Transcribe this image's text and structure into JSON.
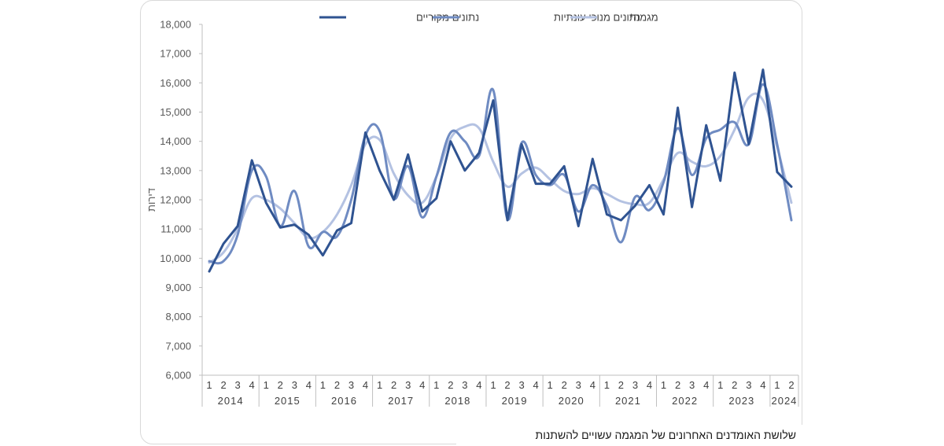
{
  "chart_data": {
    "type": "line",
    "ylabel": "דירות",
    "ylim": [
      6000,
      18000
    ],
    "yticks": [
      6000,
      7000,
      8000,
      9000,
      10000,
      11000,
      12000,
      13000,
      14000,
      15000,
      16000,
      17000,
      18000
    ],
    "ytick_labels": [
      "6,000",
      "7,000",
      "8,000",
      "9,000",
      "10,000",
      "11,000",
      "12,000",
      "13,000",
      "14,000",
      "15,000",
      "16,000",
      "17,000",
      "18,000"
    ],
    "x_quarters": [
      "1",
      "2",
      "3",
      "4",
      "1",
      "2",
      "3",
      "4",
      "1",
      "2",
      "3",
      "4",
      "1",
      "2",
      "3",
      "4",
      "1",
      "2",
      "3",
      "4",
      "1",
      "2",
      "3",
      "4",
      "1",
      "2",
      "3",
      "4",
      "1",
      "2",
      "3",
      "4",
      "1",
      "2",
      "3",
      "4",
      "1",
      "2",
      "3",
      "4",
      "1",
      "2"
    ],
    "years": [
      "2014",
      "2015",
      "2016",
      "2017",
      "2018",
      "2019",
      "2020",
      "2021",
      "2022",
      "2023",
      "2024"
    ],
    "legend_position": "top",
    "grid": false,
    "series": [
      {
        "name": "נתונים מקוריים",
        "color": "#2f5391",
        "values": [
          9550,
          10500,
          11100,
          13350,
          11900,
          11050,
          11150,
          10800,
          10100,
          10950,
          11200,
          14300,
          13000,
          12000,
          13550,
          11600,
          12050,
          14000,
          13000,
          13600,
          15400,
          11300,
          13900,
          12550,
          12550,
          13150,
          11100,
          13400,
          11500,
          11300,
          11800,
          12500,
          11500,
          15150,
          11750,
          14550,
          12650,
          16350,
          13900,
          16450,
          12950,
          12450
        ]
      },
      {
        "name": "נתונים מנוכי עונתיות",
        "color": "#6f8bc2",
        "values": [
          9900,
          9900,
          10800,
          13000,
          12800,
          11100,
          12300,
          10400,
          10900,
          10750,
          12000,
          14200,
          14350,
          12050,
          13150,
          11400,
          12800,
          14300,
          14000,
          13500,
          15750,
          11350,
          13950,
          12850,
          12500,
          12850,
          11600,
          12500,
          11800,
          10550,
          12100,
          11650,
          12600,
          14450,
          12850,
          14100,
          14400,
          14650,
          13900,
          15950,
          13900,
          11300
        ]
      },
      {
        "name": "מגמה*",
        "color": "#b4c2e2",
        "values": [
          9850,
          10200,
          11000,
          12050,
          12000,
          11700,
          11200,
          10700,
          10900,
          11500,
          12500,
          13900,
          14050,
          12900,
          12150,
          11900,
          12800,
          14100,
          14500,
          14450,
          13300,
          12450,
          12900,
          13100,
          12700,
          12300,
          12200,
          12400,
          12200,
          11950,
          11850,
          11900,
          12700,
          13600,
          13300,
          13150,
          13500,
          14400,
          15500,
          15400,
          13800,
          11900
        ]
      }
    ],
    "footnote": "שלושת האומדנים האחרונים של המגמה עשויים  להשתנות"
  }
}
